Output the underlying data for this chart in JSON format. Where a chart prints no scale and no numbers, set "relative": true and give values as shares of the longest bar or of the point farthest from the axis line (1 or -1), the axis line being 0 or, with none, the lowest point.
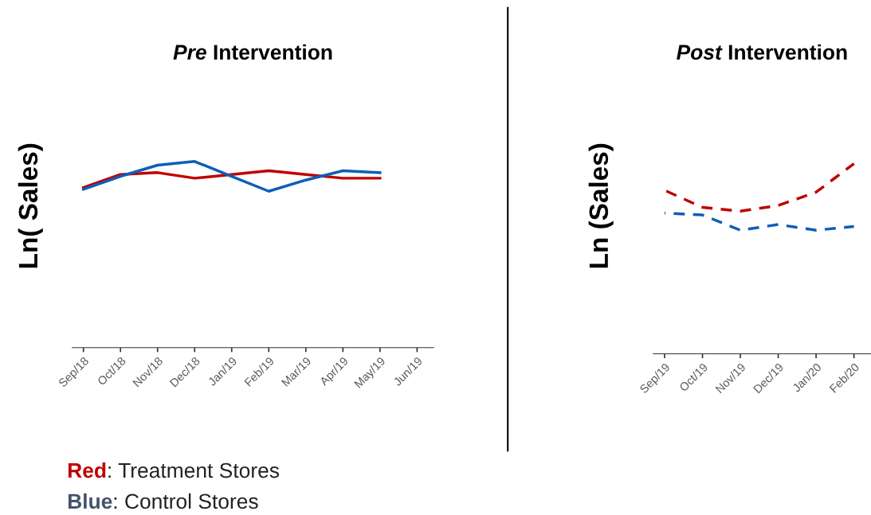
{
  "chart_data": [
    {
      "type": "line",
      "title": "Pre Intervention",
      "ylabel": "Ln( Sales)",
      "relative": true,
      "line_style": "solid",
      "marker": "none",
      "grid": false,
      "legend": false,
      "categories": [
        "Sep/18",
        "Oct/18",
        "Nov/18",
        "Dec/18",
        "Jan/19",
        "Feb/19",
        "Mar/19",
        "Apr/19",
        "May/19",
        "Jun/19"
      ],
      "series": [
        {
          "color": "#c00000",
          "values": [
            0.86,
            0.93,
            0.94,
            0.91,
            0.93,
            0.95,
            0.93,
            0.91,
            0.91,
            null
          ]
        },
        {
          "color": "#0d5fb8",
          "values": [
            0.85,
            0.92,
            0.98,
            1,
            0.92,
            0.84,
            0.9,
            0.95,
            0.94,
            null
          ]
        }
      ],
      "annotations": [
        "Red: Treatment Stores",
        "Blue: Control Stores"
      ]
    },
    {
      "type": "line",
      "title": "Post Intervention",
      "ylabel": "Ln (Sales)",
      "relative": true,
      "line_style": "dashed",
      "marker": "none",
      "grid": false,
      "legend": false,
      "categories": [
        "Sep/19",
        "Oct/19",
        "Nov/19",
        "Dec/19",
        "Jan/20",
        "Feb/20"
      ],
      "series": [
        {
          "color": "#c00000",
          "values": [
            0.86,
            0.77,
            0.75,
            0.78,
            0.85,
            1
          ]
        },
        {
          "color": "#0d5fb8",
          "values": [
            0.74,
            0.73,
            0.65,
            0.68,
            0.65,
            0.67
          ]
        }
      ]
    }
  ]
}
